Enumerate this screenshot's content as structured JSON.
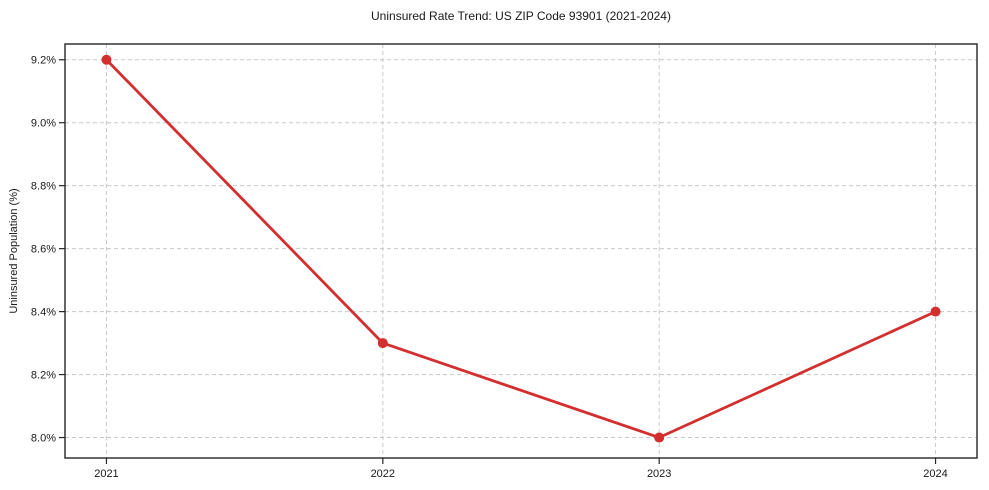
{
  "chart_title": "Uninsured Rate Trend: US ZIP Code 93901 (2021-2024)",
  "y_axis_label": "Uninsured Population (%)",
  "chart_data": {
    "type": "line",
    "title": "Uninsured Rate Trend: US ZIP Code 93901 (2021-2024)",
    "xlabel": "",
    "ylabel": "Uninsured Population (%)",
    "x": [
      2021,
      2022,
      2023,
      2024
    ],
    "series": [
      {
        "name": "Uninsured rate",
        "values": [
          9.2,
          8.3,
          8.0,
          8.4
        ]
      }
    ],
    "xticks": [
      2021,
      2022,
      2023,
      2024
    ],
    "xtick_labels": [
      "2021",
      "2022",
      "2023",
      "2024"
    ],
    "yticks": [
      8.0,
      8.2,
      8.4,
      8.6,
      8.8,
      9.0,
      9.2
    ],
    "ytick_labels": [
      "8.0%",
      "8.2%",
      "8.4%",
      "8.6%",
      "8.8%",
      "9.0%",
      "9.2%"
    ],
    "xlim": [
      2020.85,
      2024.15
    ],
    "ylim": [
      7.935,
      9.25
    ],
    "grid": true,
    "grid_style": "dashed",
    "legend": "none",
    "marker": "circle",
    "colors": {
      "line": "#d32f2f",
      "marker": "#d32f2f",
      "grid": "#c8c8c8",
      "frame": "#262626",
      "text": "#1a1a1a",
      "background": "#ffffff"
    }
  }
}
